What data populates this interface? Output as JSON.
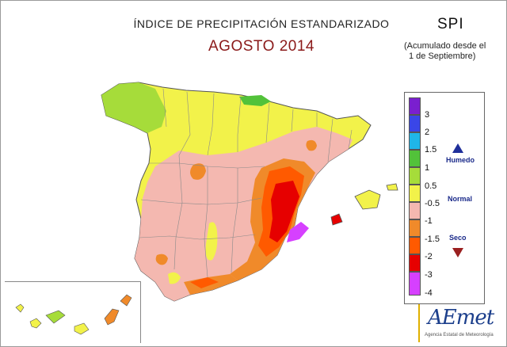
{
  "header": {
    "title": "ÍNDICE DE PRECIPITACIÓN ESTANDARIZADO",
    "subtitle": "AGOSTO 2014",
    "index_label": "SPI",
    "note_line1": "(Acumulado desde el",
    "note_line2": "1 de Septiembre)"
  },
  "legend": {
    "labels": [
      "3",
      "2",
      "1.5",
      "1",
      "0.5",
      "-0.5",
      "-1",
      "-1.5",
      "-2",
      "-3",
      "-4"
    ],
    "colors": [
      "#7a1fcf",
      "#3a46e8",
      "#1fb6e8",
      "#52c23a",
      "#a6dc3a",
      "#f2f24a",
      "#f4b8b0",
      "#f08a2a",
      "#ff5a00",
      "#e60000",
      "#d640ff"
    ],
    "humedo": "Humedo",
    "normal": "Normal",
    "seco": "Seco"
  },
  "logo": {
    "name": "AEmet",
    "tagline": "Agencia Estatal de Meteorología"
  },
  "palette": {
    "yellow": "#f2f24a",
    "light_green": "#a6dc3a",
    "pink": "#f4b8b0",
    "orange": "#f08a2a",
    "red_orange": "#ff5a00",
    "red": "#e60000",
    "violet": "#d640ff"
  }
}
